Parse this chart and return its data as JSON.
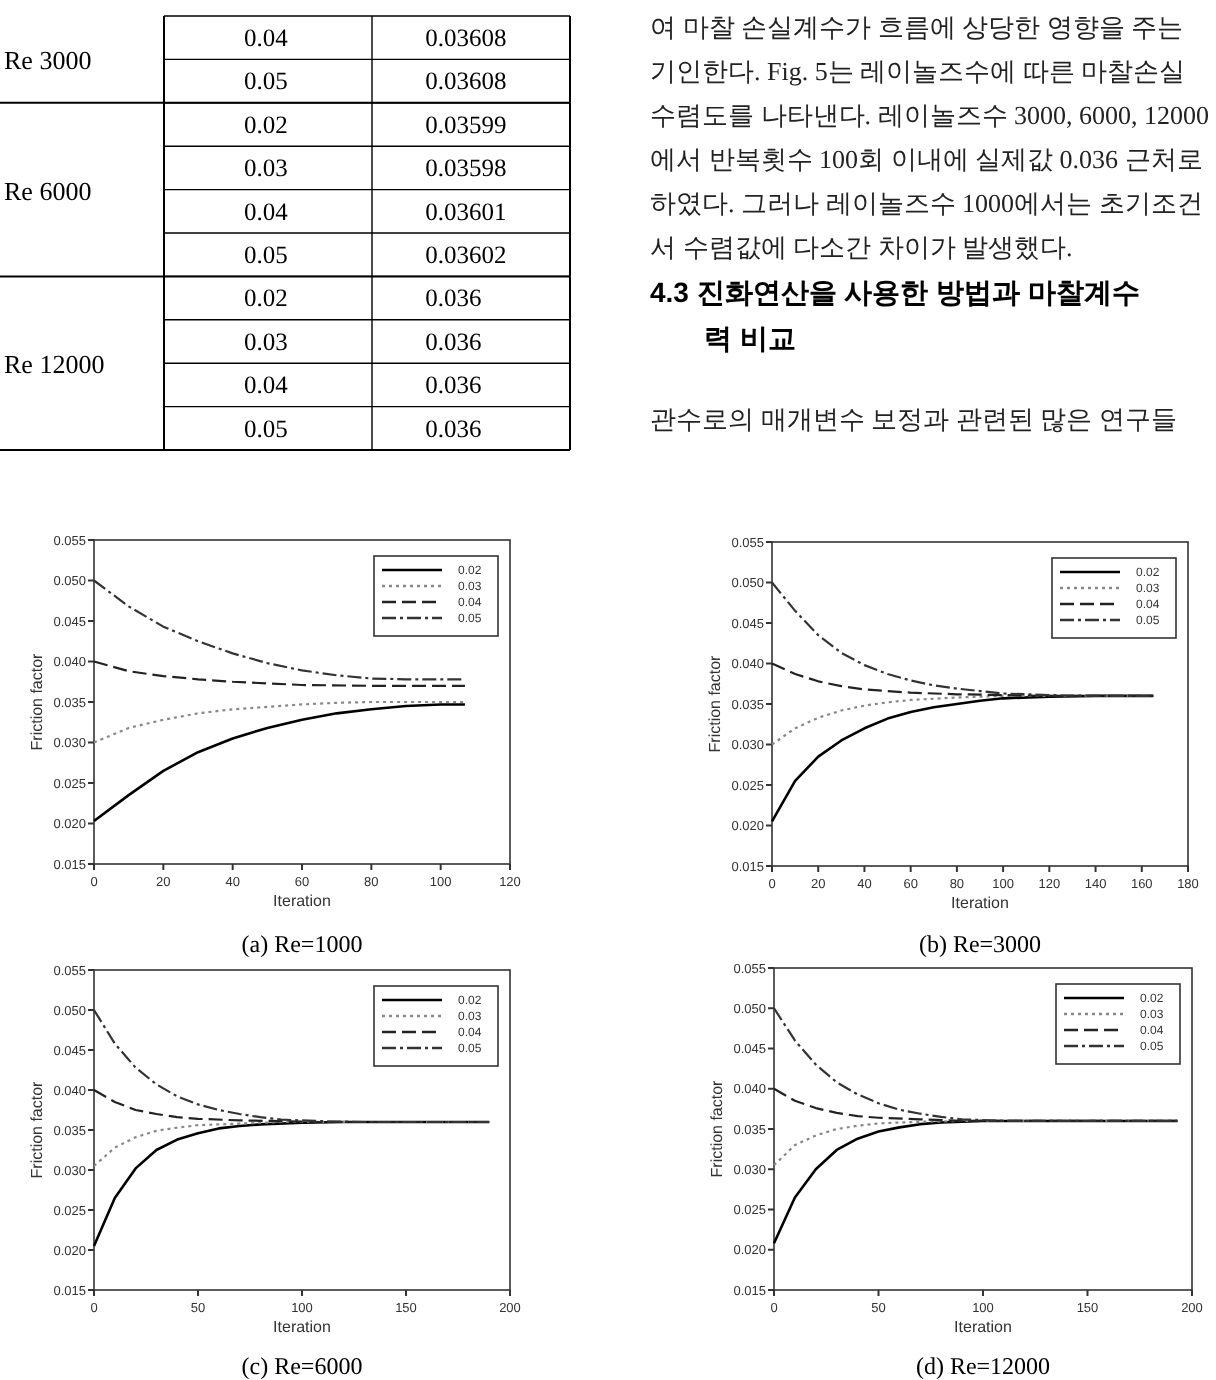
{
  "chart_data": [
    {
      "type": "other",
      "title": "Re 3000",
      "annotations": [
        "0.04",
        "0.03608",
        "0.05",
        "0.03608"
      ]
    },
    {
      "type": "other",
      "title": "Re 6000",
      "annotations": [
        "0.02",
        "0.03599",
        "0.03",
        "0.03598",
        "0.04",
        "0.03601",
        "0.05",
        "0.03602"
      ]
    },
    {
      "type": "other",
      "title": "Re 12000",
      "annotations": [
        "0.02",
        "0.036",
        "0.03",
        "0.036",
        "0.04",
        "0.036",
        "0.05",
        "0.036"
      ]
    },
    {
      "type": "other",
      "annotations": [
        "여 마찰 손실계수가 흐름에 상당한 영향을 주는",
        "기인한다. Fig. 5는 레이놀즈수에 따른 마찰손실",
        "수렴도를 나타낸다. 레이놀즈수 3000, 6000, 12000",
        "에서 반복횟수 100회 이내에 실제값 0.036 근처로",
        "하였다. 그러나 레이놀즈수 1000에서는 초기조건",
        "서 수렴값에 다소간 차이가 발생했다."
      ]
    },
    {
      "type": "other",
      "title": "4.3 진화연산을 사용한 방법과 마찰계수\n력 비교",
      "annotations": [
        "관수로의 매개변수 보정과 관련된 많은 연구들"
      ]
    },
    {
      "type": "line",
      "title": "(a) Re=1000",
      "xlabel": "Iteration",
      "ylabel": "Friction factor",
      "xlim": [
        0,
        120
      ],
      "xticks": [
        0,
        20,
        40,
        60,
        80,
        100,
        120
      ],
      "ylim": [
        0.015,
        0.055
      ],
      "yticks": [
        {
          "value": 0.015,
          "label": "0.015"
        },
        {
          "value": 0.02,
          "label": "0.020"
        },
        {
          "value": 0.025,
          "label": "0.025"
        },
        {
          "value": 0.03,
          "label": "0.030"
        },
        {
          "value": 0.035,
          "label": "0.035"
        },
        {
          "value": 0.04,
          "label": "0.040"
        },
        {
          "value": 0.045,
          "label": "0.045"
        },
        {
          "value": 0.05,
          "label": "0.050"
        },
        {
          "value": 0.055,
          "label": "0.055"
        }
      ],
      "legend": "top right",
      "marker": "none",
      "series": [
        {
          "name": "0.02",
          "color": "#000000",
          "line_style": "solid",
          "x": [
            0,
            10,
            20,
            30,
            40,
            50,
            60,
            70,
            80,
            90,
            100,
            107
          ],
          "values": [
            0.0203,
            0.0235,
            0.0265,
            0.0288,
            0.0305,
            0.0318,
            0.0328,
            0.0336,
            0.0341,
            0.0345,
            0.0347,
            0.0347
          ]
        },
        {
          "name": "0.03",
          "color": "#888888",
          "line_style": "dotted",
          "x": [
            0,
            10,
            20,
            30,
            40,
            50,
            60,
            70,
            80,
            107
          ],
          "values": [
            0.03,
            0.0318,
            0.0328,
            0.0336,
            0.0341,
            0.0344,
            0.0347,
            0.0349,
            0.035,
            0.035
          ]
        },
        {
          "name": "0.04",
          "color": "#222222",
          "line_style": "dashed",
          "x": [
            0,
            10,
            20,
            30,
            40,
            50,
            60,
            80,
            107
          ],
          "values": [
            0.04,
            0.0388,
            0.0382,
            0.0378,
            0.0375,
            0.0373,
            0.0371,
            0.037,
            0.037
          ]
        },
        {
          "name": "0.05",
          "color": "#333333",
          "line_style": "dashdot",
          "x": [
            0,
            10,
            20,
            30,
            40,
            50,
            60,
            70,
            80,
            90,
            107
          ],
          "values": [
            0.05,
            0.0468,
            0.0443,
            0.0425,
            0.041,
            0.0398,
            0.0389,
            0.0383,
            0.0379,
            0.0378,
            0.0378
          ]
        }
      ]
    },
    {
      "type": "line",
      "title": "(b) Re=3000",
      "xlabel": "Iteration",
      "ylabel": "Friction factor",
      "xlim": [
        0,
        180
      ],
      "xticks": [
        0,
        20,
        40,
        60,
        80,
        100,
        120,
        140,
        160,
        180
      ],
      "ylim": [
        0.015,
        0.055
      ],
      "yticks": [
        {
          "value": 0.015,
          "label": "0.015"
        },
        {
          "value": 0.02,
          "label": "0.020"
        },
        {
          "value": 0.025,
          "label": "0.025"
        },
        {
          "value": 0.03,
          "label": "0.030"
        },
        {
          "value": 0.035,
          "label": "0.035"
        },
        {
          "value": 0.04,
          "label": "0.040"
        },
        {
          "value": 0.045,
          "label": "0.045"
        },
        {
          "value": 0.05,
          "label": "0.050"
        },
        {
          "value": 0.055,
          "label": "0.055"
        }
      ],
      "legend": "top right",
      "marker": "none",
      "series": [
        {
          "name": "0.02",
          "color": "#000000",
          "line_style": "solid",
          "x": [
            0,
            10,
            20,
            30,
            40,
            50,
            60,
            70,
            80,
            90,
            100,
            120,
            140,
            165
          ],
          "values": [
            0.0205,
            0.0255,
            0.0285,
            0.0305,
            0.032,
            0.0332,
            0.034,
            0.0346,
            0.035,
            0.0354,
            0.0357,
            0.0359,
            0.036,
            0.036
          ]
        },
        {
          "name": "0.03",
          "color": "#888888",
          "line_style": "dotted",
          "x": [
            0,
            10,
            20,
            30,
            40,
            50,
            60,
            80,
            100,
            165
          ],
          "values": [
            0.03,
            0.032,
            0.0333,
            0.0342,
            0.0348,
            0.0352,
            0.0355,
            0.0358,
            0.036,
            0.036
          ]
        },
        {
          "name": "0.04",
          "color": "#222222",
          "line_style": "dashed",
          "x": [
            0,
            10,
            20,
            30,
            40,
            50,
            60,
            80,
            100,
            120,
            165
          ],
          "values": [
            0.04,
            0.0387,
            0.0378,
            0.0372,
            0.0368,
            0.0366,
            0.0364,
            0.0362,
            0.0361,
            0.036,
            0.036
          ]
        },
        {
          "name": "0.05",
          "color": "#333333",
          "line_style": "dashdot",
          "x": [
            0,
            10,
            20,
            30,
            40,
            50,
            60,
            70,
            80,
            90,
            100,
            120,
            140,
            165
          ],
          "values": [
            0.05,
            0.0465,
            0.0435,
            0.0413,
            0.0398,
            0.0387,
            0.0379,
            0.0373,
            0.0369,
            0.0366,
            0.0363,
            0.0361,
            0.036,
            0.036
          ]
        }
      ]
    },
    {
      "type": "line",
      "title": "(c) Re=6000",
      "xlabel": "Iteration",
      "ylabel": "Friction factor",
      "xlim": [
        0,
        200
      ],
      "xticks": [
        0,
        50,
        100,
        150,
        200
      ],
      "ylim": [
        0.015,
        0.055
      ],
      "yticks": [
        {
          "value": 0.015,
          "label": "0.015"
        },
        {
          "value": 0.02,
          "label": "0.020"
        },
        {
          "value": 0.025,
          "label": "0.025"
        },
        {
          "value": 0.03,
          "label": "0.030"
        },
        {
          "value": 0.035,
          "label": "0.035"
        },
        {
          "value": 0.04,
          "label": "0.040"
        },
        {
          "value": 0.045,
          "label": "0.045"
        },
        {
          "value": 0.05,
          "label": "0.050"
        },
        {
          "value": 0.055,
          "label": "0.055"
        }
      ],
      "legend": "top right",
      "marker": "none",
      "series": [
        {
          "name": "0.02",
          "color": "#000000",
          "line_style": "solid",
          "x": [
            0,
            10,
            20,
            30,
            40,
            50,
            60,
            70,
            80,
            100,
            120,
            190
          ],
          "values": [
            0.0205,
            0.0265,
            0.0302,
            0.0325,
            0.0338,
            0.0346,
            0.0352,
            0.0355,
            0.0357,
            0.0359,
            0.036,
            0.036
          ]
        },
        {
          "name": "0.03",
          "color": "#888888",
          "line_style": "dotted",
          "x": [
            0,
            10,
            20,
            30,
            40,
            50,
            70,
            90,
            190
          ],
          "values": [
            0.0305,
            0.0328,
            0.0341,
            0.0349,
            0.0353,
            0.0356,
            0.0358,
            0.036,
            0.036
          ]
        },
        {
          "name": "0.04",
          "color": "#222222",
          "line_style": "dashed",
          "x": [
            0,
            10,
            20,
            30,
            40,
            50,
            70,
            90,
            110,
            190
          ],
          "values": [
            0.04,
            0.0385,
            0.0375,
            0.037,
            0.0366,
            0.0364,
            0.0362,
            0.0361,
            0.036,
            0.036
          ]
        },
        {
          "name": "0.05",
          "color": "#333333",
          "line_style": "dashdot",
          "x": [
            0,
            10,
            20,
            30,
            40,
            50,
            60,
            70,
            80,
            90,
            110,
            130,
            190
          ],
          "values": [
            0.05,
            0.0458,
            0.0428,
            0.0407,
            0.0392,
            0.0382,
            0.0375,
            0.037,
            0.0366,
            0.0363,
            0.0361,
            0.036,
            0.036
          ]
        }
      ]
    },
    {
      "type": "line",
      "title": "(d) Re=12000",
      "xlabel": "Iteration",
      "ylabel": "Friction factor",
      "xlim": [
        0,
        200
      ],
      "xticks": [
        0,
        50,
        100,
        150,
        200
      ],
      "ylim": [
        0.015,
        0.055
      ],
      "yticks": [
        {
          "value": 0.015,
          "label": "0.015"
        },
        {
          "value": 0.02,
          "label": "0.020"
        },
        {
          "value": 0.025,
          "label": "0.025"
        },
        {
          "value": 0.03,
          "label": "0.030"
        },
        {
          "value": 0.035,
          "label": "0.035"
        },
        {
          "value": 0.04,
          "label": "0.040"
        },
        {
          "value": 0.045,
          "label": "0.045"
        },
        {
          "value": 0.05,
          "label": "0.050"
        },
        {
          "value": 0.055,
          "label": "0.055"
        }
      ],
      "legend": "top right",
      "marker": "none",
      "series": [
        {
          "name": "0.02",
          "color": "#000000",
          "line_style": "solid",
          "x": [
            0,
            10,
            20,
            30,
            40,
            50,
            60,
            70,
            80,
            100,
            193
          ],
          "values": [
            0.0208,
            0.0265,
            0.03,
            0.0324,
            0.0338,
            0.0347,
            0.0352,
            0.0356,
            0.0358,
            0.036,
            0.036
          ]
        },
        {
          "name": "0.03",
          "color": "#888888",
          "line_style": "dotted",
          "x": [
            0,
            10,
            20,
            30,
            40,
            50,
            70,
            90,
            193
          ],
          "values": [
            0.0305,
            0.033,
            0.0342,
            0.035,
            0.0354,
            0.0357,
            0.0359,
            0.036,
            0.036
          ]
        },
        {
          "name": "0.04",
          "color": "#222222",
          "line_style": "dashed",
          "x": [
            0,
            10,
            20,
            30,
            40,
            50,
            70,
            90,
            193
          ],
          "values": [
            0.04,
            0.0385,
            0.0376,
            0.037,
            0.0366,
            0.0364,
            0.0362,
            0.036,
            0.036
          ]
        },
        {
          "name": "0.05",
          "color": "#333333",
          "line_style": "dashdot",
          "x": [
            0,
            10,
            20,
            30,
            40,
            50,
            60,
            70,
            80,
            90,
            110,
            193
          ],
          "values": [
            0.05,
            0.046,
            0.043,
            0.0408,
            0.0393,
            0.0382,
            0.0374,
            0.0369,
            0.0365,
            0.0362,
            0.036,
            0.036
          ]
        }
      ]
    }
  ]
}
